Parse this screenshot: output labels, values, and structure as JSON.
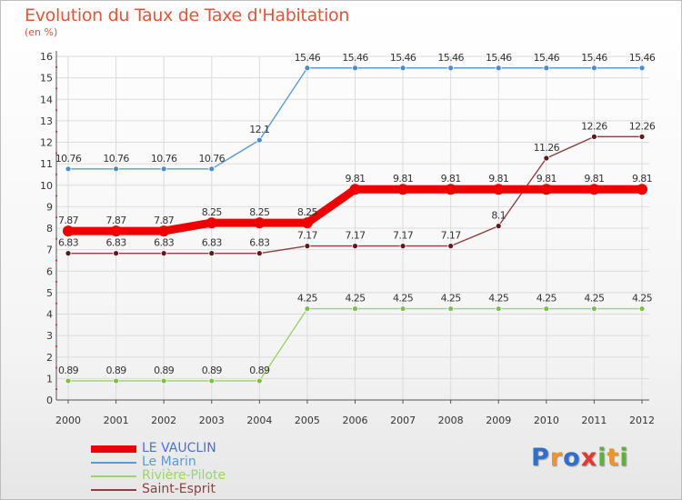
{
  "title": "Evolution du Taux de Taxe d'Habitation",
  "unit_label": "(en %)",
  "logo": {
    "letters": [
      "P",
      "r",
      "o",
      "x",
      "i",
      "t",
      "i"
    ],
    "colors": [
      "#2f6fc9",
      "#f0932b",
      "#2f6fc9",
      "#e03a2e",
      "#5db33a",
      "#f0932b",
      "#5db33a"
    ]
  },
  "chart_data": {
    "type": "line",
    "title": "Evolution du Taux de Taxe d'Habitation",
    "ylabel": "(en %)",
    "xlabel": "",
    "x": [
      "2000",
      "2001",
      "2002",
      "2003",
      "2004",
      "2005",
      "2006",
      "2007",
      "2008",
      "2009",
      "2010",
      "2011",
      "2012"
    ],
    "ylim": [
      0,
      16
    ],
    "yticks": [
      0,
      1,
      2,
      3,
      4,
      5,
      6,
      7,
      8,
      9,
      10,
      11,
      12,
      13,
      14,
      15,
      16
    ],
    "legend_position": "bottom-left",
    "series": [
      {
        "name": "Le Marin",
        "color": "#5b9bd5",
        "point_color": "#4a8ccc",
        "values": [
          10.76,
          10.76,
          10.76,
          10.76,
          12.1,
          15.46,
          15.46,
          15.46,
          15.46,
          15.46,
          15.46,
          15.46,
          15.46
        ],
        "labels": [
          "10.76",
          "10.76",
          "10.76",
          "10.76",
          "12.1",
          "15.46",
          "15.46",
          "15.46",
          "15.46",
          "15.46",
          "15.46",
          "15.46",
          "15.46"
        ]
      },
      {
        "name": "Rivière-Pilote",
        "color": "#9ad46b",
        "point_color": "#79c340",
        "values": [
          0.89,
          0.89,
          0.89,
          0.89,
          0.89,
          4.25,
          4.25,
          4.25,
          4.25,
          4.25,
          4.25,
          4.25,
          4.25
        ],
        "labels": [
          "0.89",
          "0.89",
          "0.89",
          "0.89",
          "0.89",
          "4.25",
          "4.25",
          "4.25",
          "4.25",
          "4.25",
          "4.25",
          "4.25",
          "4.25"
        ]
      },
      {
        "name": "Saint-Esprit",
        "color": "#8e3f3f",
        "point_color": "#5e1a1a",
        "values": [
          6.83,
          6.83,
          6.83,
          6.83,
          6.83,
          7.17,
          7.17,
          7.17,
          7.17,
          8.1,
          11.26,
          12.26,
          12.26
        ],
        "labels": [
          "6.83",
          "6.83",
          "6.83",
          "6.83",
          "6.83",
          "7.17",
          "7.17",
          "7.17",
          "7.17",
          "8.1",
          "11.26",
          "12.26",
          "12.26"
        ]
      },
      {
        "name": "LE VAUCLIN",
        "color": "#ee0000",
        "point_color": "#ee0000",
        "values": [
          7.87,
          7.87,
          7.87,
          8.25,
          8.25,
          8.25,
          9.81,
          9.81,
          9.81,
          9.81,
          9.81,
          9.81,
          9.81
        ],
        "labels": [
          "7.87",
          "7.87",
          "7.87",
          "8.25",
          "8.25",
          "8.25",
          "9.81",
          "9.81",
          "9.81",
          "9.81",
          "9.81",
          "9.81",
          "9.81"
        ]
      }
    ],
    "legend": [
      {
        "name": "LE VAUCLIN",
        "color": "#ee0000"
      },
      {
        "name": "Le Marin",
        "color": "#5b9bd5"
      },
      {
        "name": "Rivière-Pilote",
        "color": "#9ad46b"
      },
      {
        "name": "Saint-Esprit",
        "color": "#8e3f3f"
      }
    ]
  }
}
